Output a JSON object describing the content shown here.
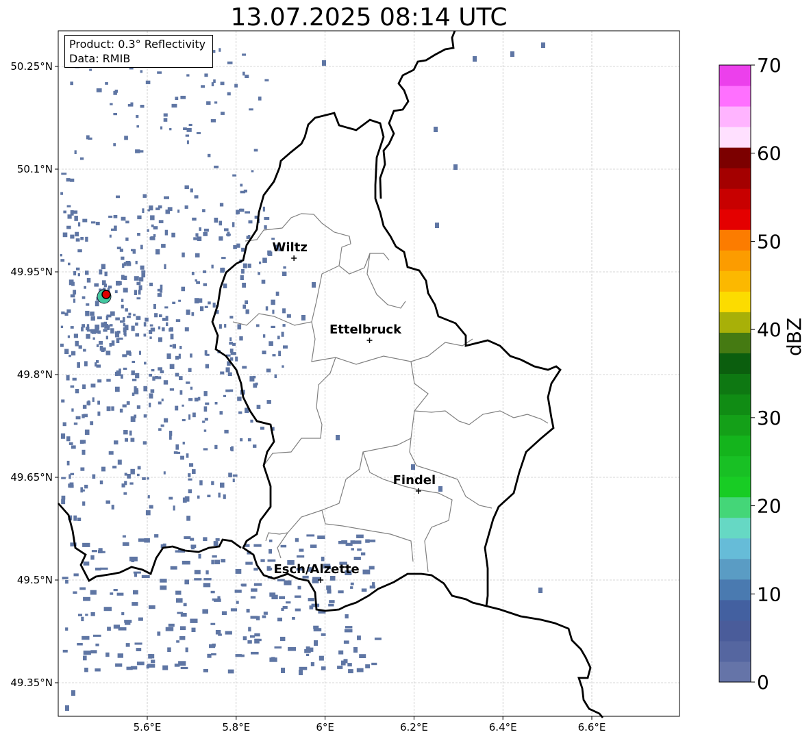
{
  "title": "13.07.2025 08:14 UTC",
  "info_box": {
    "product": "Product: 0.3° Reflectivity",
    "data": "Data: RMIB"
  },
  "axes": {
    "x_ticks": [
      "5.6°E",
      "5.8°E",
      "6°E",
      "6.2°E",
      "6.4°E",
      "6.6°E"
    ],
    "x_tick_values": [
      5.6,
      5.8,
      6.0,
      6.2,
      6.4,
      6.6
    ],
    "y_ticks": [
      "50.25°N",
      "50.1°N",
      "49.95°N",
      "49.8°N",
      "49.65°N",
      "49.5°N",
      "49.35°N"
    ],
    "y_tick_values": [
      50.25,
      50.1,
      49.95,
      49.8,
      49.65,
      49.5,
      49.35
    ],
    "lon_range": [
      5.4,
      6.8
    ],
    "lat_range": [
      49.3,
      50.3
    ],
    "grid": true
  },
  "cities": [
    {
      "name": "Wiltz",
      "lon": 5.93,
      "lat": 49.97
    },
    {
      "name": "Ettelbruck",
      "lon": 6.1,
      "lat": 49.85
    },
    {
      "name": "Findel",
      "lon": 6.21,
      "lat": 49.63
    },
    {
      "name": "Esch/Alzette",
      "lon": 5.99,
      "lat": 49.5
    }
  ],
  "radar_site": {
    "lon": 5.505,
    "lat": 49.915
  },
  "colorbar": {
    "label": "dBZ",
    "min": 0,
    "max": 70,
    "tick_labels": [
      "0",
      "10",
      "20",
      "30",
      "40",
      "50",
      "60",
      "70"
    ],
    "colors": [
      "#6574a8",
      "#5566a0",
      "#4a5c9a",
      "#4360a0",
      "#4a7ab0",
      "#5a9cc4",
      "#66bcd8",
      "#66d8c4",
      "#44d678",
      "#18cc24",
      "#18c024",
      "#14b41c",
      "#14a018",
      "#108c14",
      "#0e7812",
      "#0b5e0e",
      "#457a12",
      "#a8b008",
      "#fcdc00",
      "#fcb800",
      "#fc9c00",
      "#fc7c00",
      "#e40000",
      "#c80000",
      "#a40000",
      "#7c0000",
      "#ffe0ff",
      "#ffb4ff",
      "#ff70ff",
      "#ec40ec"
    ]
  },
  "colors": {
    "echo": "#5f76a4",
    "border_national": "#000000",
    "border_canton": "#808080",
    "grid": "#b0b0b0",
    "site_marker": "#e00000"
  }
}
